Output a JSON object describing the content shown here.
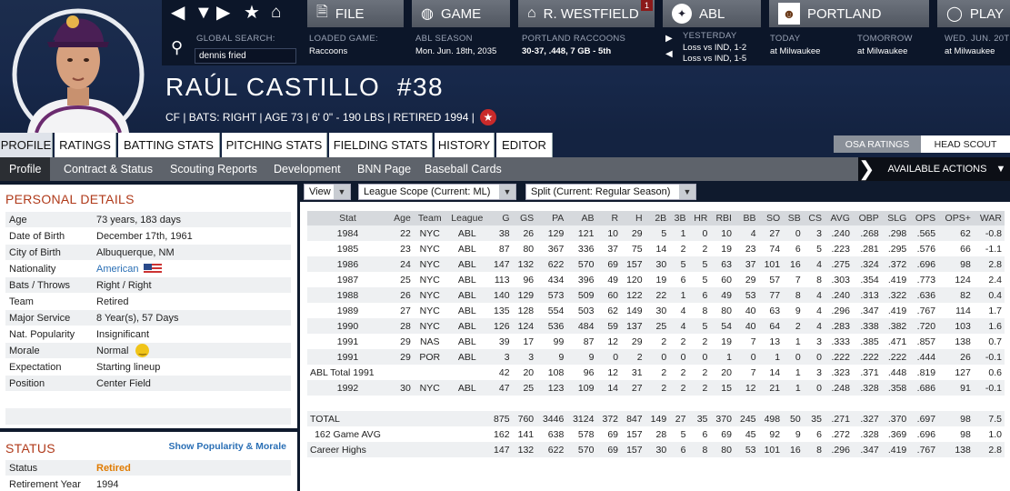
{
  "header": {
    "menus": [
      {
        "label": "FILE",
        "icon": "file-icon"
      },
      {
        "label": "GAME",
        "icon": "globe-icon"
      },
      {
        "label": "R. WESTFIELD",
        "icon": "home-icon",
        "badge": "1"
      },
      {
        "label": "ABL",
        "icon": "league-logo-icon"
      },
      {
        "label": "PORTLAND",
        "icon": "team-logo-icon"
      },
      {
        "label": "PLAY",
        "icon": "play-icon"
      }
    ],
    "search_label": "GLOBAL SEARCH:",
    "search_value": "dennis fried",
    "loaded_game_label": "LOADED GAME:",
    "loaded_game_value": "Raccoons",
    "season_label": "ABL SEASON",
    "season_value": "Mon. Jun. 18th, 2035",
    "team_label": "PORTLAND RACCOONS",
    "team_value": "30-37, .448, 7 GB - 5th",
    "yesterday_label": "YESTERDAY",
    "yesterday_line1": "Loss vs IND, 1-2",
    "yesterday_line2": "Loss vs IND, 1-5",
    "today_label": "TODAY",
    "today_value": "at Milwaukee",
    "tomorrow_label": "TOMORROW",
    "tomorrow_value": "at Milwaukee",
    "wed_label": "WED. JUN. 20T",
    "wed_value": "at Milwaukee"
  },
  "player": {
    "name": "RAÚL CASTILLO",
    "number": "#38",
    "info": "CF | BATS: RIGHT  | AGE 73 |  6' 0\" - 190 LBS  | RETIRED 1994 |"
  },
  "tabs": [
    "PROFILE",
    "RATINGS",
    "BATTING STATS",
    "PITCHING STATS",
    "FIELDING STATS",
    "HISTORY",
    "EDITOR"
  ],
  "rating_buttons": {
    "osa": "OSA RATINGS",
    "scout": "HEAD SCOUT"
  },
  "subtabs": [
    "Profile",
    "Contract & Status",
    "Scouting Reports",
    "Development",
    "BNN Page",
    "Baseball Cards"
  ],
  "available_actions": "AVAILABLE ACTIONS",
  "personal": {
    "title": "PERSONAL DETAILS",
    "rows": [
      {
        "k": "Age",
        "v": "73 years, 183 days"
      },
      {
        "k": "Date of Birth",
        "v": "December 17th, 1961"
      },
      {
        "k": "City of Birth",
        "v": "Albuquerque, NM"
      },
      {
        "k": "Nationality",
        "v": "American"
      },
      {
        "k": "Bats / Throws",
        "v": "Right / Right"
      },
      {
        "k": "Team",
        "v": "Retired"
      },
      {
        "k": "Major Service",
        "v": "8 Year(s), 57 Days"
      },
      {
        "k": "Nat. Popularity",
        "v": "Insignificant"
      },
      {
        "k": "Morale",
        "v": "Normal"
      },
      {
        "k": "Expectation",
        "v": "Starting lineup"
      },
      {
        "k": "Position",
        "v": "Center Field"
      }
    ]
  },
  "status": {
    "title": "STATUS",
    "link": "Show Popularity & Morale",
    "rows": [
      {
        "k": "Status",
        "v": "Retired"
      },
      {
        "k": "Retirement Year",
        "v": "1994"
      }
    ],
    "status_color": "#e07b00"
  },
  "filters": {
    "view": "View",
    "scope": "League Scope  (Current: ML)",
    "split": "Split  (Current: Regular Season)"
  },
  "stats": {
    "columns": [
      "Stat",
      "Age",
      "Team",
      "League",
      "G",
      "GS",
      "PA",
      "AB",
      "R",
      "H",
      "2B",
      "3B",
      "HR",
      "RBI",
      "BB",
      "SO",
      "SB",
      "CS",
      "AVG",
      "OBP",
      "SLG",
      "OPS",
      "OPS+",
      "WAR"
    ],
    "rows": [
      [
        "1984",
        "22",
        "NYC",
        "ABL",
        "38",
        "26",
        "129",
        "121",
        "10",
        "29",
        "5",
        "1",
        "0",
        "10",
        "4",
        "27",
        "0",
        "3",
        ".240",
        ".268",
        ".298",
        ".565",
        "62",
        "-0.8"
      ],
      [
        "1985",
        "23",
        "NYC",
        "ABL",
        "87",
        "80",
        "367",
        "336",
        "37",
        "75",
        "14",
        "2",
        "2",
        "19",
        "23",
        "74",
        "6",
        "5",
        ".223",
        ".281",
        ".295",
        ".576",
        "66",
        "-1.1"
      ],
      [
        "1986",
        "24",
        "NYC",
        "ABL",
        "147",
        "132",
        "622",
        "570",
        "69",
        "157",
        "30",
        "5",
        "5",
        "63",
        "37",
        "101",
        "16",
        "4",
        ".275",
        ".324",
        ".372",
        ".696",
        "98",
        "2.8"
      ],
      [
        "1987",
        "25",
        "NYC",
        "ABL",
        "113",
        "96",
        "434",
        "396",
        "49",
        "120",
        "19",
        "6",
        "5",
        "60",
        "29",
        "57",
        "7",
        "8",
        ".303",
        ".354",
        ".419",
        ".773",
        "124",
        "2.4"
      ],
      [
        "1988",
        "26",
        "NYC",
        "ABL",
        "140",
        "129",
        "573",
        "509",
        "60",
        "122",
        "22",
        "1",
        "6",
        "49",
        "53",
        "77",
        "8",
        "4",
        ".240",
        ".313",
        ".322",
        ".636",
        "82",
        "0.4"
      ],
      [
        "1989",
        "27",
        "NYC",
        "ABL",
        "135",
        "128",
        "554",
        "503",
        "62",
        "149",
        "30",
        "4",
        "8",
        "80",
        "40",
        "63",
        "9",
        "4",
        ".296",
        ".347",
        ".419",
        ".767",
        "114",
        "1.7"
      ],
      [
        "1990",
        "28",
        "NYC",
        "ABL",
        "126",
        "124",
        "536",
        "484",
        "59",
        "137",
        "25",
        "4",
        "5",
        "54",
        "40",
        "64",
        "2",
        "4",
        ".283",
        ".338",
        ".382",
        ".720",
        "103",
        "1.6"
      ],
      [
        "1991",
        "29",
        "NAS",
        "ABL",
        "39",
        "17",
        "99",
        "87",
        "12",
        "29",
        "2",
        "2",
        "2",
        "19",
        "7",
        "13",
        "1",
        "3",
        ".333",
        ".385",
        ".471",
        ".857",
        "138",
        "0.7"
      ],
      [
        "1991",
        "29",
        "POR",
        "ABL",
        "3",
        "3",
        "9",
        "9",
        "0",
        "2",
        "0",
        "0",
        "0",
        "1",
        "0",
        "1",
        "0",
        "0",
        ".222",
        ".222",
        ".222",
        ".444",
        "26",
        "-0.1"
      ],
      [
        "ABL Total 1991",
        "",
        "",
        "",
        "42",
        "20",
        "108",
        "96",
        "12",
        "31",
        "2",
        "2",
        "2",
        "20",
        "7",
        "14",
        "1",
        "3",
        ".323",
        ".371",
        ".448",
        ".819",
        "127",
        "0.6"
      ],
      [
        "1992",
        "30",
        "NYC",
        "ABL",
        "47",
        "25",
        "123",
        "109",
        "14",
        "27",
        "2",
        "2",
        "2",
        "15",
        "12",
        "21",
        "1",
        "0",
        ".248",
        ".328",
        ".358",
        ".686",
        "91",
        "-0.1"
      ],
      null,
      [
        "TOTAL",
        "",
        "",
        "",
        "875",
        "760",
        "3446",
        "3124",
        "372",
        "847",
        "149",
        "27",
        "35",
        "370",
        "245",
        "498",
        "50",
        "35",
        ".271",
        ".327",
        ".370",
        ".697",
        "98",
        "7.5"
      ],
      [
        "162 Game AVG",
        "",
        "",
        "",
        "162",
        "141",
        "638",
        "578",
        "69",
        "157",
        "28",
        "5",
        "6",
        "69",
        "45",
        "92",
        "9",
        "6",
        ".272",
        ".328",
        ".369",
        ".696",
        "98",
        "1.0"
      ],
      [
        "Career Highs",
        "",
        "",
        "",
        "147",
        "132",
        "622",
        "570",
        "69",
        "157",
        "30",
        "6",
        "8",
        "80",
        "53",
        "101",
        "16",
        "8",
        ".296",
        ".347",
        ".419",
        ".767",
        "138",
        "2.8"
      ]
    ]
  }
}
